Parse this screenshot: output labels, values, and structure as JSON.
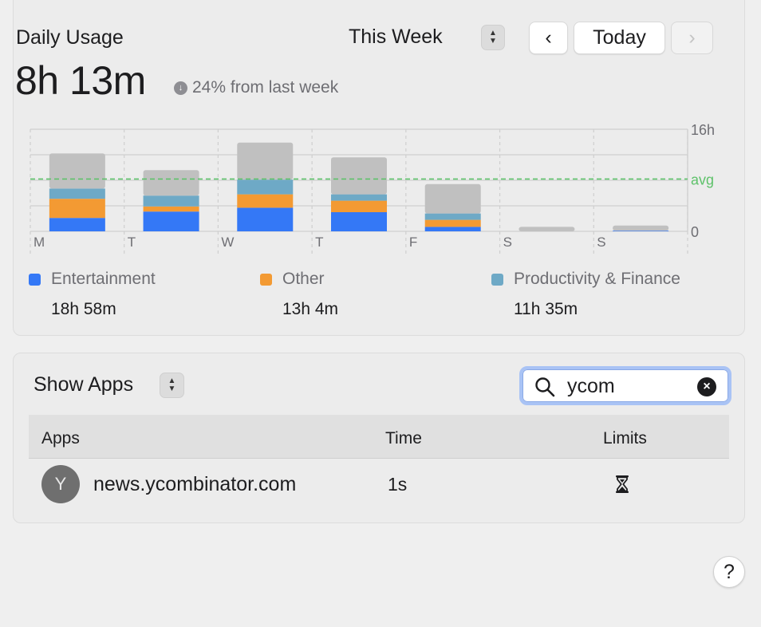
{
  "usage": {
    "title": "Daily Usage",
    "total": "8h 13m",
    "comparison": "24% from last week",
    "comparison_icon": "arrow-down-circle-icon",
    "period": "This Week",
    "prev_label": "‹",
    "today_label": "Today",
    "next_label": "›"
  },
  "chart_data": {
    "type": "bar",
    "stacked": true,
    "categories": [
      "M",
      "T",
      "W",
      "T",
      "F",
      "S",
      "S"
    ],
    "y_tick_labels": [
      "16h",
      "avg",
      "0"
    ],
    "ylim": [
      0,
      16
    ],
    "average_hours": 8.2,
    "grid": true,
    "series": [
      {
        "name": "Entertainment",
        "color": "#3478f6",
        "values": [
          2.1,
          3.1,
          3.7,
          3.0,
          0.7,
          0.0,
          0.1
        ]
      },
      {
        "name": "Other",
        "color": "#f39a33",
        "values": [
          3.0,
          0.8,
          2.1,
          1.8,
          1.1,
          0.0,
          0.0
        ]
      },
      {
        "name": "Productivity & Finance",
        "color": "#6ea9c6",
        "values": [
          1.6,
          1.7,
          2.3,
          1.0,
          1.0,
          0.0,
          0.0
        ]
      },
      {
        "color": "#c0c0c0",
        "values": [
          5.5,
          4.0,
          5.8,
          5.8,
          4.6,
          0.7,
          0.8
        ]
      }
    ]
  },
  "legend": [
    {
      "name": "Entertainment",
      "value": "18h 58m",
      "color": "#3478f6"
    },
    {
      "name": "Other",
      "value": "13h 4m",
      "color": "#f39a33"
    },
    {
      "name": "Productivity & Finance",
      "value": "11h 35m",
      "color": "#6ea9c6"
    }
  ],
  "apps": {
    "show_label": "Show Apps",
    "search_value": "ycom",
    "columns": {
      "apps": "Apps",
      "time": "Time",
      "limits": "Limits"
    },
    "rows": [
      {
        "avatar": "Y",
        "name": "news.ycombinator.com",
        "time": "1s",
        "limit_icon": "hourglass-icon"
      }
    ]
  },
  "help_label": "?"
}
